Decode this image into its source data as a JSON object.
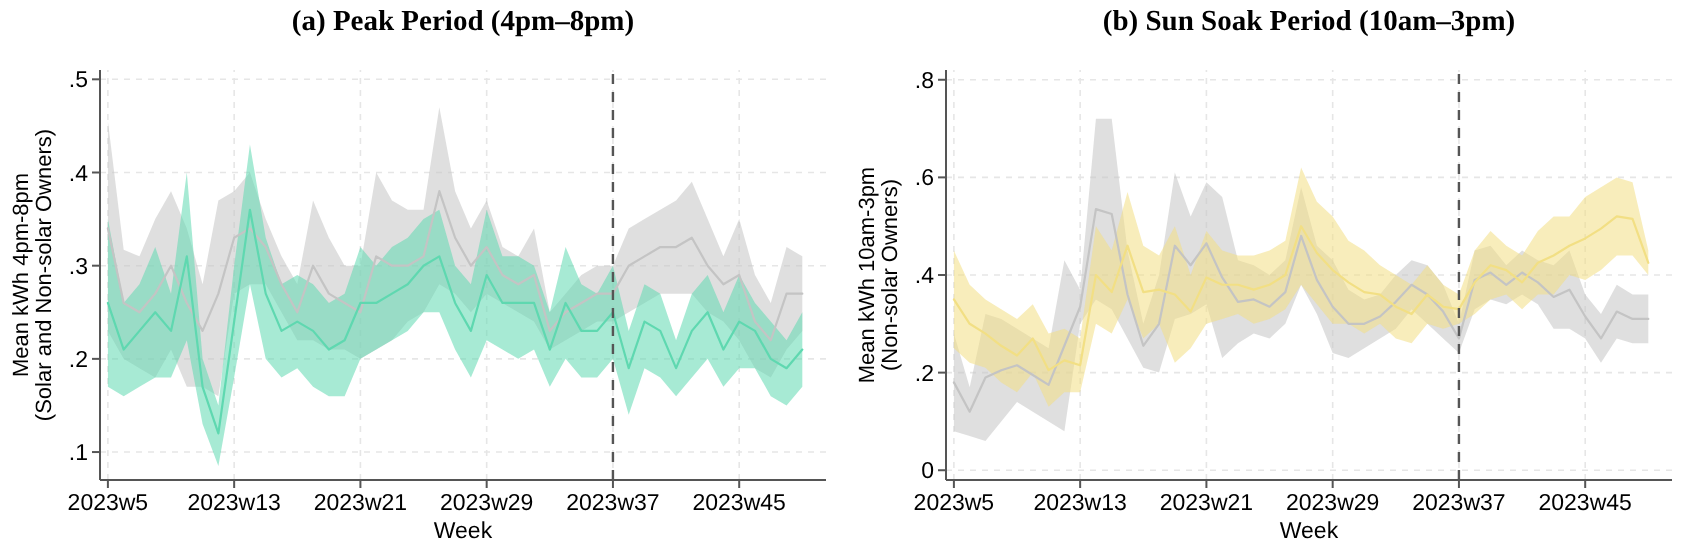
{
  "chart_data": [
    {
      "type": "line",
      "title": "(a) Peak Period (4pm–8pm)",
      "xlabel": "Week",
      "ylabel": "Mean kWh 4pm-8pm\n(Solar and Non-solar Owners)",
      "categories": [
        "2023w5",
        null,
        null,
        null,
        null,
        null,
        null,
        null,
        "2023w13",
        null,
        null,
        null,
        null,
        null,
        null,
        null,
        "2023w21",
        null,
        null,
        null,
        null,
        null,
        null,
        null,
        "2023w29",
        null,
        null,
        null,
        null,
        null,
        null,
        null,
        "2023w37",
        null,
        null,
        null,
        null,
        null,
        null,
        null,
        "2023w45",
        null,
        null,
        null,
        null
      ],
      "ylim": [
        0.07,
        0.51
      ],
      "yticks": [
        {
          "value": 0.1,
          "label": ".1"
        },
        {
          "value": 0.2,
          "label": ".2"
        },
        {
          "value": 0.3,
          "label": ".3"
        },
        {
          "value": 0.4,
          "label": ".4"
        },
        {
          "value": 0.5,
          "label": ".5"
        }
      ],
      "grid": true,
      "ref_lines": [
        {
          "axis": "x",
          "value": "2023w37",
          "color": "#555555",
          "line_style": "dashed"
        }
      ],
      "series": [
        {
          "color": "#c4c4c4",
          "values": [
            0.34,
            0.26,
            0.25,
            0.27,
            0.3,
            0.26,
            0.23,
            0.27,
            0.33,
            0.34,
            0.32,
            0.28,
            0.25,
            0.3,
            0.27,
            0.26,
            0.25,
            0.31,
            0.3,
            0.3,
            0.31,
            0.38,
            0.33,
            0.3,
            0.32,
            0.29,
            0.28,
            0.29,
            0.23,
            0.25,
            0.26,
            0.27,
            0.27,
            0.3,
            0.31,
            0.32,
            0.32,
            0.33,
            0.3,
            0.28,
            0.29,
            0.24,
            0.22,
            0.27,
            0.27
          ],
          "lower": [
            0.23,
            0.2,
            0.19,
            0.18,
            0.21,
            0.17,
            0.17,
            0.16,
            0.27,
            0.28,
            0.28,
            0.25,
            0.22,
            0.22,
            0.21,
            0.21,
            0.2,
            0.21,
            0.22,
            0.24,
            0.25,
            0.28,
            0.27,
            0.25,
            0.27,
            0.26,
            0.25,
            0.24,
            0.21,
            0.22,
            0.23,
            0.24,
            0.24,
            0.25,
            0.26,
            0.27,
            0.27,
            0.27,
            0.25,
            0.24,
            0.22,
            0.19,
            0.18,
            0.21,
            0.23
          ],
          "upper": [
            0.455,
            0.317,
            0.31,
            0.35,
            0.38,
            0.34,
            0.28,
            0.37,
            0.38,
            0.4,
            0.35,
            0.31,
            0.28,
            0.37,
            0.33,
            0.3,
            0.3,
            0.4,
            0.37,
            0.36,
            0.36,
            0.47,
            0.38,
            0.34,
            0.37,
            0.32,
            0.31,
            0.34,
            0.25,
            0.27,
            0.29,
            0.3,
            0.3,
            0.34,
            0.35,
            0.36,
            0.37,
            0.39,
            0.35,
            0.31,
            0.35,
            0.29,
            0.26,
            0.32,
            0.31
          ]
        },
        {
          "color": "#5fd8b0",
          "values": [
            0.26,
            0.21,
            0.23,
            0.25,
            0.23,
            0.31,
            0.17,
            0.12,
            0.24,
            0.36,
            0.27,
            0.23,
            0.24,
            0.23,
            0.21,
            0.22,
            0.26,
            0.26,
            0.27,
            0.28,
            0.3,
            0.31,
            0.26,
            0.23,
            0.29,
            0.26,
            0.26,
            0.26,
            0.21,
            0.26,
            0.23,
            0.23,
            0.25,
            0.19,
            0.24,
            0.23,
            0.19,
            0.23,
            0.25,
            0.21,
            0.24,
            0.23,
            0.2,
            0.19,
            0.21
          ],
          "lower": [
            0.17,
            0.16,
            0.17,
            0.18,
            0.18,
            0.22,
            0.13,
            0.085,
            0.18,
            0.28,
            0.2,
            0.18,
            0.19,
            0.17,
            0.16,
            0.16,
            0.2,
            0.21,
            0.22,
            0.23,
            0.25,
            0.25,
            0.21,
            0.18,
            0.22,
            0.21,
            0.2,
            0.21,
            0.17,
            0.2,
            0.18,
            0.18,
            0.2,
            0.14,
            0.19,
            0.18,
            0.16,
            0.18,
            0.2,
            0.17,
            0.19,
            0.19,
            0.16,
            0.15,
            0.17
          ],
          "upper": [
            0.35,
            0.26,
            0.28,
            0.32,
            0.27,
            0.4,
            0.2,
            0.15,
            0.3,
            0.43,
            0.33,
            0.28,
            0.29,
            0.28,
            0.26,
            0.27,
            0.32,
            0.3,
            0.32,
            0.33,
            0.35,
            0.36,
            0.3,
            0.28,
            0.36,
            0.31,
            0.31,
            0.3,
            0.25,
            0.32,
            0.28,
            0.27,
            0.3,
            0.23,
            0.28,
            0.27,
            0.22,
            0.27,
            0.29,
            0.25,
            0.29,
            0.26,
            0.24,
            0.22,
            0.25
          ]
        }
      ]
    },
    {
      "type": "line",
      "title": "(b) Sun Soak Period (10am–3pm)",
      "xlabel": "Week",
      "ylabel": "Mean kWh 10am-3pm\n(Non-solar Owners)",
      "categories": [
        "2023w5",
        null,
        null,
        null,
        null,
        null,
        null,
        null,
        "2023w13",
        null,
        null,
        null,
        null,
        null,
        null,
        null,
        "2023w21",
        null,
        null,
        null,
        null,
        null,
        null,
        null,
        "2023w29",
        null,
        null,
        null,
        null,
        null,
        null,
        null,
        "2023w37",
        null,
        null,
        null,
        null,
        null,
        null,
        null,
        "2023w45",
        null,
        null,
        null,
        null
      ],
      "ylim": [
        -0.02,
        0.82
      ],
      "yticks": [
        0,
        {
          "value": 0.2,
          "label": ".2"
        },
        {
          "value": 0.4,
          "label": ".4"
        },
        {
          "value": 0.6,
          "label": ".6"
        },
        {
          "value": 0.8,
          "label": ".8"
        }
      ],
      "grid": true,
      "ref_lines": [
        {
          "axis": "x",
          "value": "2023w37",
          "color": "#555555",
          "line_style": "dashed"
        }
      ],
      "series": [
        {
          "color": "#c4c4c4",
          "values": [
            0.18,
            0.12,
            0.19,
            0.205,
            0.215,
            0.195,
            0.175,
            0.255,
            0.335,
            0.535,
            0.525,
            0.36,
            0.255,
            0.3,
            0.46,
            0.42,
            0.465,
            0.395,
            0.345,
            0.35,
            0.335,
            0.365,
            0.48,
            0.39,
            0.335,
            0.3,
            0.3,
            0.315,
            0.345,
            0.38,
            0.36,
            0.325,
            0.27,
            0.39,
            0.405,
            0.38,
            0.405,
            0.385,
            0.355,
            0.37,
            0.315,
            0.27,
            0.325,
            0.31,
            0.31
          ],
          "lower": [
            0.08,
            0.07,
            0.06,
            0.1,
            0.14,
            0.12,
            0.1,
            0.08,
            0.3,
            0.35,
            0.33,
            0.27,
            0.21,
            0.2,
            0.31,
            0.32,
            0.34,
            0.23,
            0.26,
            0.28,
            0.27,
            0.3,
            0.38,
            0.32,
            0.24,
            0.23,
            0.25,
            0.27,
            0.29,
            0.33,
            0.3,
            0.27,
            0.24,
            0.33,
            0.35,
            0.34,
            0.36,
            0.34,
            0.29,
            0.29,
            0.27,
            0.22,
            0.27,
            0.26,
            0.26
          ],
          "upper": [
            0.28,
            0.17,
            0.32,
            0.31,
            0.29,
            0.27,
            0.25,
            0.43,
            0.37,
            0.72,
            0.72,
            0.45,
            0.3,
            0.4,
            0.61,
            0.52,
            0.59,
            0.56,
            0.43,
            0.42,
            0.4,
            0.43,
            0.58,
            0.46,
            0.43,
            0.37,
            0.35,
            0.36,
            0.4,
            0.43,
            0.42,
            0.38,
            0.3,
            0.45,
            0.46,
            0.42,
            0.45,
            0.43,
            0.42,
            0.45,
            0.36,
            0.32,
            0.38,
            0.36,
            0.36
          ]
        },
        {
          "color": "#f2df84",
          "values": [
            0.35,
            0.3,
            0.28,
            0.255,
            0.235,
            0.27,
            0.205,
            0.225,
            0.215,
            0.4,
            0.365,
            0.46,
            0.365,
            0.37,
            0.36,
            0.325,
            0.395,
            0.38,
            0.38,
            0.37,
            0.38,
            0.4,
            0.5,
            0.445,
            0.41,
            0.385,
            0.365,
            0.36,
            0.335,
            0.32,
            0.36,
            0.335,
            0.33,
            0.385,
            0.42,
            0.41,
            0.385,
            0.425,
            0.44,
            0.46,
            0.475,
            0.495,
            0.52,
            0.515,
            0.425
          ],
          "lower": [
            0.25,
            0.22,
            0.21,
            0.18,
            0.16,
            0.2,
            0.13,
            0.16,
            0.16,
            0.3,
            0.28,
            0.35,
            0.27,
            0.3,
            0.22,
            0.25,
            0.3,
            0.31,
            0.32,
            0.3,
            0.31,
            0.33,
            0.38,
            0.34,
            0.3,
            0.3,
            0.28,
            0.3,
            0.27,
            0.26,
            0.3,
            0.29,
            0.3,
            0.32,
            0.35,
            0.36,
            0.33,
            0.36,
            0.36,
            0.4,
            0.39,
            0.41,
            0.44,
            0.44,
            0.4
          ],
          "upper": [
            0.45,
            0.38,
            0.35,
            0.33,
            0.31,
            0.34,
            0.28,
            0.29,
            0.27,
            0.5,
            0.45,
            0.57,
            0.46,
            0.44,
            0.5,
            0.4,
            0.49,
            0.45,
            0.44,
            0.44,
            0.45,
            0.47,
            0.62,
            0.55,
            0.52,
            0.47,
            0.45,
            0.42,
            0.4,
            0.38,
            0.42,
            0.38,
            0.36,
            0.45,
            0.49,
            0.46,
            0.44,
            0.49,
            0.52,
            0.52,
            0.56,
            0.58,
            0.6,
            0.59,
            0.45
          ]
        }
      ]
    }
  ]
}
